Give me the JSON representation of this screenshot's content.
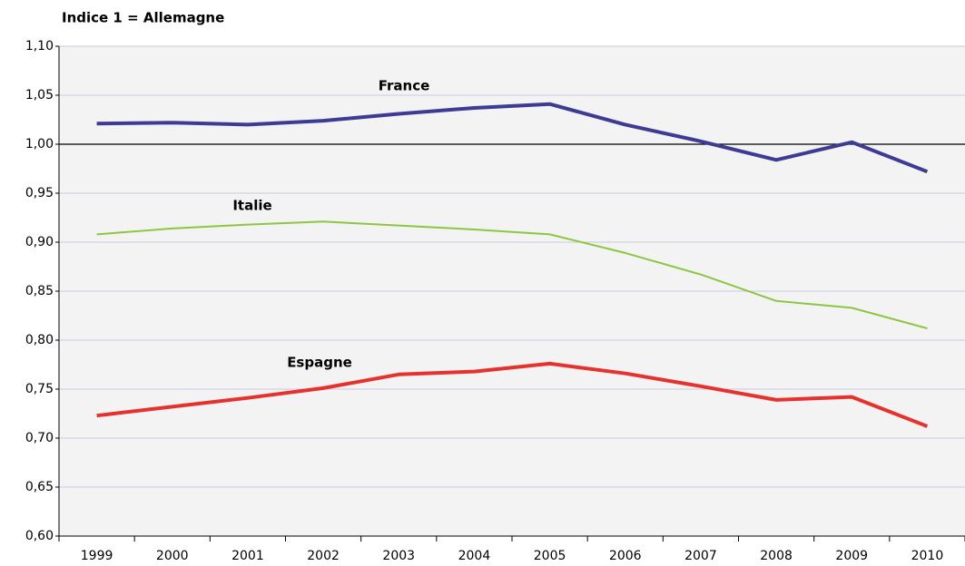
{
  "chart_data": {
    "type": "line",
    "title": "Indice 1 = Allemagne",
    "categories": [
      "1999",
      "2000",
      "2001",
      "2002",
      "2003",
      "2004",
      "2005",
      "2006",
      "2007",
      "2008",
      "2009",
      "2010"
    ],
    "series": [
      {
        "name": "France",
        "color": "#3d3b93",
        "values": [
          1.021,
          1.022,
          1.02,
          1.024,
          1.031,
          1.037,
          1.041,
          1.02,
          1.003,
          0.984,
          1.002,
          0.972
        ]
      },
      {
        "name": "Italie",
        "color": "#8dc63f",
        "values": [
          0.908,
          0.914,
          0.918,
          0.921,
          0.917,
          0.913,
          0.908,
          0.889,
          0.867,
          0.84,
          0.833,
          0.812
        ]
      },
      {
        "name": "Espagne",
        "color": "#e5322d",
        "values": [
          0.723,
          0.732,
          0.741,
          0.751,
          0.765,
          0.768,
          0.776,
          0.766,
          0.753,
          0.739,
          0.742,
          0.712
        ]
      }
    ],
    "ylim": [
      0.6,
      1.1
    ],
    "yticks": [
      {
        "value": 0.6,
        "label": "0,60"
      },
      {
        "value": 0.65,
        "label": "0,65"
      },
      {
        "value": 0.7,
        "label": "0,70"
      },
      {
        "value": 0.75,
        "label": "0,75"
      },
      {
        "value": 0.8,
        "label": "0,80"
      },
      {
        "value": 0.85,
        "label": "0,85"
      },
      {
        "value": 0.9,
        "label": "0,90"
      },
      {
        "value": 0.95,
        "label": "0,95"
      },
      {
        "value": 1.0,
        "label": "1,00"
      },
      {
        "value": 1.05,
        "label": "1,05"
      },
      {
        "value": 1.1,
        "label": "1,10"
      }
    ],
    "reference_line": 1,
    "grid": true
  }
}
